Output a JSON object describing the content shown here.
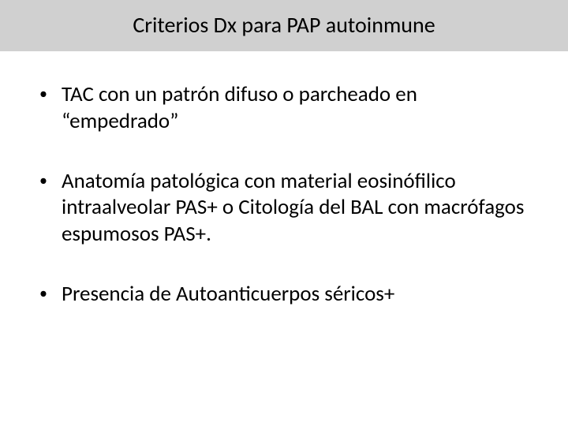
{
  "title": "Criterios Dx para PAP autoinmune",
  "bullets": [
    "TAC con un patrón difuso  o parcheado en “empedrado”",
    "Anatomía patológica con material eosinófilico intraalveolar PAS+ o Citología del BAL con macrófagos espumosos PAS+.",
    "Presencia de Autoanticuerpos séricos+"
  ],
  "colors": {
    "title_bar_bg": "#d0d0d0",
    "slide_bg": "#ffffff",
    "text": "#000000"
  },
  "typography": {
    "title_fontsize": 28,
    "body_fontsize": 27,
    "font_family": "Calibri"
  },
  "bullet_marker": "•"
}
